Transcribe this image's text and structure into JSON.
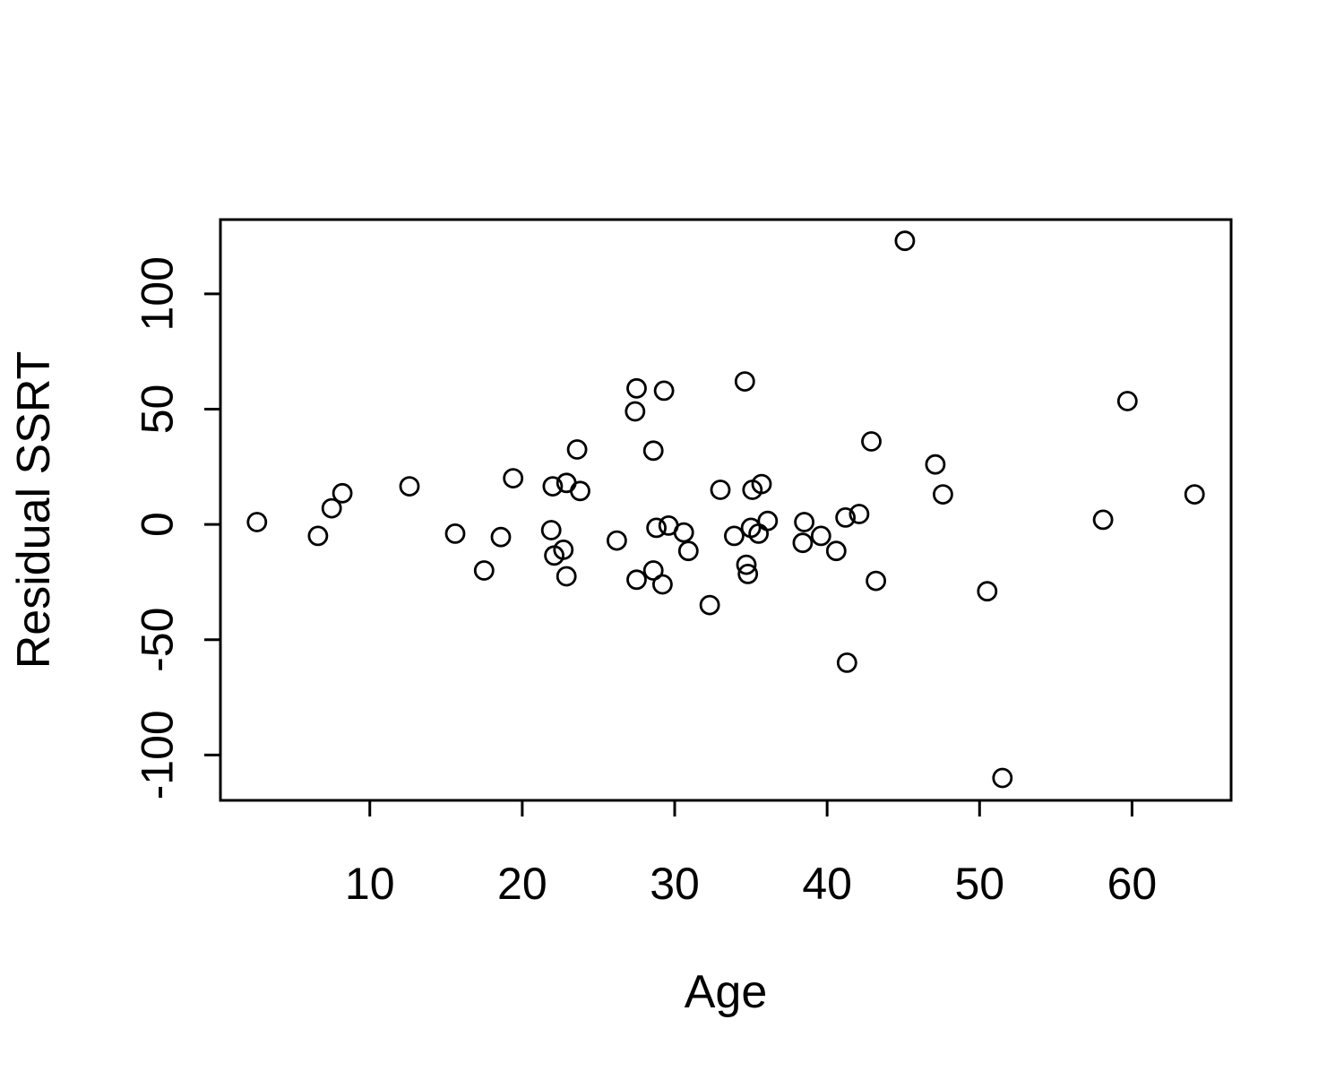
{
  "figure": {
    "background_color": "#ffffff",
    "stroke_color": "#000000",
    "marker": "open-circle"
  },
  "chart_data": {
    "type": "scatter",
    "title": "",
    "xlabel": "Age",
    "ylabel": "Residual SSRT",
    "x_ticks": [
      10,
      20,
      30,
      40,
      50,
      60
    ],
    "y_ticks": [
      -100,
      -50,
      0,
      50,
      100
    ],
    "x_tick_labels": [
      "10",
      "20",
      "30",
      "40",
      "50",
      "60"
    ],
    "y_tick_labels": [
      "-100",
      "-50",
      "0",
      "50",
      "100"
    ],
    "xlim": [
      0.2,
      66.5
    ],
    "ylim": [
      -119.7,
      132.2
    ],
    "grid": false,
    "legend_position": "none",
    "points": [
      [
        2.6,
        1
      ],
      [
        6.6,
        -5
      ],
      [
        7.5,
        7
      ],
      [
        8.2,
        13.5
      ],
      [
        12.6,
        16.5
      ],
      [
        15.6,
        -4
      ],
      [
        17.5,
        -20
      ],
      [
        18.6,
        -5.5
      ],
      [
        19.4,
        20
      ],
      [
        21.9,
        -2.5
      ],
      [
        22.0,
        16.5
      ],
      [
        22.1,
        -13.5
      ],
      [
        22.7,
        -11
      ],
      [
        22.9,
        18
      ],
      [
        22.9,
        -22.5
      ],
      [
        23.6,
        32.5
      ],
      [
        23.8,
        14.5
      ],
      [
        26.2,
        -7
      ],
      [
        27.4,
        49
      ],
      [
        27.5,
        59
      ],
      [
        27.5,
        -24
      ],
      [
        28.6,
        32
      ],
      [
        28.6,
        -20
      ],
      [
        28.8,
        -1.5
      ],
      [
        29.2,
        -26
      ],
      [
        29.3,
        58
      ],
      [
        29.6,
        -0.5
      ],
      [
        30.6,
        -3.5
      ],
      [
        30.9,
        -11.5
      ],
      [
        32.3,
        -35
      ],
      [
        33.0,
        15
      ],
      [
        33.9,
        -5
      ],
      [
        34.6,
        62
      ],
      [
        34.7,
        -17.5
      ],
      [
        34.8,
        -21.5
      ],
      [
        35.0,
        -1.5
      ],
      [
        35.1,
        15
      ],
      [
        35.5,
        -4
      ],
      [
        35.7,
        17.5
      ],
      [
        36.1,
        1.5
      ],
      [
        38.4,
        -8
      ],
      [
        38.5,
        1
      ],
      [
        39.6,
        -5
      ],
      [
        40.6,
        -11.5
      ],
      [
        41.2,
        3
      ],
      [
        41.3,
        -60
      ],
      [
        42.1,
        4.5
      ],
      [
        42.9,
        36
      ],
      [
        43.2,
        -24.5
      ],
      [
        45.1,
        123
      ],
      [
        47.1,
        26
      ],
      [
        47.6,
        13
      ],
      [
        50.5,
        -29
      ],
      [
        51.5,
        -110
      ],
      [
        58.1,
        2
      ],
      [
        59.7,
        53.5
      ],
      [
        64.1,
        13
      ]
    ]
  }
}
